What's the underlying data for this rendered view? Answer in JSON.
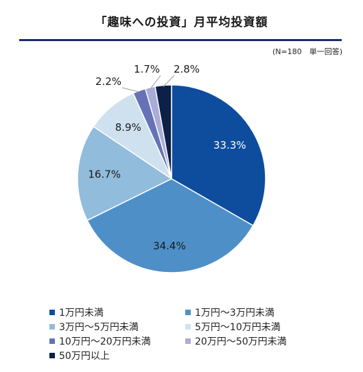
{
  "chart_data": {
    "type": "pie",
    "title": "「趣味への投資」月平均投資額",
    "note": "(N=180　単一回答)",
    "slices": [
      {
        "name": "1万円未満",
        "value": 33.3,
        "label": "33.3%",
        "color": "#0e4d9e"
      },
      {
        "name": "1万円～3万円未満",
        "value": 34.4,
        "label": "34.4%",
        "color": "#4e8fc8"
      },
      {
        "name": "3万円～5万円未満",
        "value": 16.7,
        "label": "16.7%",
        "color": "#92bcdc"
      },
      {
        "name": "5万円～10万円未満",
        "value": 8.9,
        "label": "8.9%",
        "color": "#cfe1ef"
      },
      {
        "name": "10万円～20万円未満",
        "value": 2.2,
        "label": "2.2%",
        "color": "#6672b8"
      },
      {
        "name": "20万円～50万円未満",
        "value": 1.7,
        "label": "1.7%",
        "color": "#a8acd6"
      },
      {
        "name": "50万円以上",
        "value": 2.8,
        "label": "2.8%",
        "color": "#0d2047"
      }
    ],
    "legend_position": "bottom"
  }
}
